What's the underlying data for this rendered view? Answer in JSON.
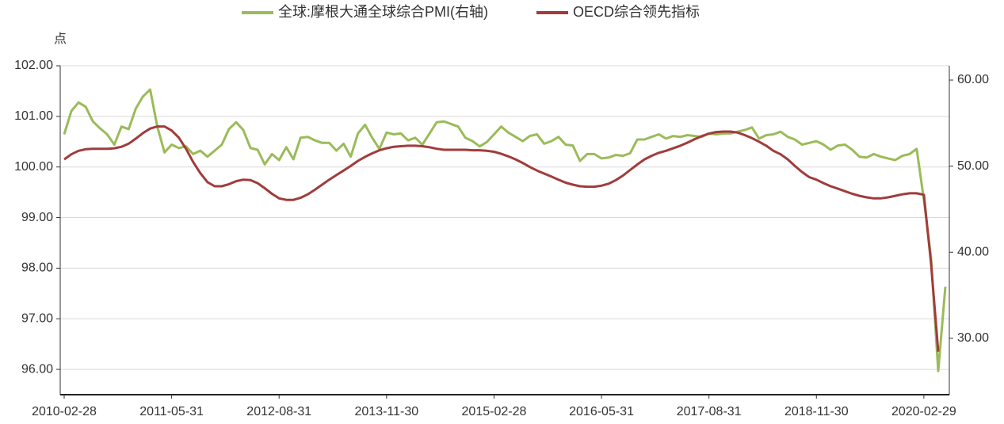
{
  "chart_data": {
    "type": "line",
    "y_unit_label": "点",
    "categories": [
      "2010-02-28",
      null,
      null,
      null,
      null,
      null,
      null,
      null,
      null,
      null,
      null,
      null,
      null,
      null,
      null,
      "2011-05-31",
      null,
      null,
      null,
      null,
      null,
      null,
      null,
      null,
      null,
      null,
      null,
      null,
      null,
      null,
      "2012-08-31",
      null,
      null,
      null,
      null,
      null,
      null,
      null,
      null,
      null,
      null,
      null,
      null,
      null,
      null,
      "2013-11-30",
      null,
      null,
      null,
      null,
      null,
      null,
      null,
      null,
      null,
      null,
      null,
      null,
      null,
      null,
      "2015-02-28",
      null,
      null,
      null,
      null,
      null,
      null,
      null,
      null,
      null,
      null,
      null,
      null,
      null,
      null,
      "2016-05-31",
      null,
      null,
      null,
      null,
      null,
      null,
      null,
      null,
      null,
      null,
      null,
      null,
      null,
      null,
      "2017-08-31",
      null,
      null,
      null,
      null,
      null,
      null,
      null,
      null,
      null,
      null,
      null,
      null,
      null,
      null,
      "2018-11-30",
      null,
      null,
      null,
      null,
      null,
      null,
      null,
      null,
      null,
      null,
      null,
      null,
      null,
      null,
      "2020-02-29",
      null,
      null,
      null
    ],
    "series": [
      {
        "name": "全球:摩根大通全球综合PMI(右轴)",
        "color": "#9bbb59",
        "axis": "y2",
        "values": [
          53.7,
          56.4,
          57.4,
          56.9,
          55.2,
          54.4,
          53.7,
          52.5,
          54.6,
          54.3,
          56.7,
          58.1,
          58.9,
          54.6,
          51.6,
          52.5,
          52.1,
          52.3,
          51.4,
          51.8,
          51.1,
          51.8,
          52.5,
          54.3,
          55.1,
          54.2,
          52.1,
          51.9,
          50.2,
          51.4,
          50.7,
          52.2,
          50.8,
          53.3,
          53.4,
          53.0,
          52.7,
          52.7,
          51.8,
          52.6,
          51.1,
          53.8,
          54.8,
          53.3,
          52.0,
          53.9,
          53.7,
          53.8,
          53.0,
          53.3,
          52.5,
          53.8,
          55.1,
          55.2,
          54.9,
          54.6,
          53.3,
          52.9,
          52.3,
          52.8,
          53.7,
          54.6,
          53.9,
          53.4,
          52.9,
          53.5,
          53.7,
          52.6,
          52.9,
          53.4,
          52.5,
          52.4,
          50.6,
          51.4,
          51.4,
          50.9,
          51.0,
          51.3,
          51.2,
          51.5,
          53.1,
          53.1,
          53.4,
          53.7,
          53.2,
          53.5,
          53.4,
          53.6,
          53.5,
          53.4,
          53.8,
          53.7,
          53.8,
          53.8,
          54.0,
          54.2,
          54.5,
          53.2,
          53.6,
          53.7,
          54.0,
          53.4,
          53.1,
          52.5,
          52.7,
          52.9,
          52.5,
          51.9,
          52.4,
          52.5,
          51.9,
          51.1,
          51.0,
          51.4,
          51.1,
          50.9,
          50.7,
          51.2,
          51.4,
          52.0,
          46.1,
          39.4,
          26.2,
          36.0
        ]
      },
      {
        "name": "OECD综合领先指标",
        "color": "#a03c3c",
        "values": [
          100.15,
          100.25,
          100.32,
          100.35,
          100.36,
          100.36,
          100.36,
          100.37,
          100.4,
          100.46,
          100.56,
          100.67,
          100.76,
          100.8,
          100.8,
          100.72,
          100.58,
          100.36,
          100.1,
          99.88,
          99.7,
          99.62,
          99.62,
          99.66,
          99.72,
          99.75,
          99.74,
          99.68,
          99.58,
          99.47,
          99.38,
          99.35,
          99.35,
          99.39,
          99.46,
          99.55,
          99.65,
          99.75,
          99.84,
          99.93,
          100.02,
          100.12,
          100.2,
          100.27,
          100.33,
          100.37,
          100.4,
          100.41,
          100.42,
          100.42,
          100.41,
          100.39,
          100.36,
          100.34,
          100.34,
          100.34,
          100.34,
          100.33,
          100.33,
          100.32,
          100.3,
          100.26,
          100.21,
          100.15,
          100.08,
          100.0,
          99.93,
          99.87,
          99.81,
          99.75,
          99.69,
          99.65,
          99.62,
          99.61,
          99.61,
          99.63,
          99.67,
          99.74,
          99.83,
          99.94,
          100.05,
          100.15,
          100.22,
          100.28,
          100.32,
          100.37,
          100.42,
          100.48,
          100.55,
          100.61,
          100.66,
          100.69,
          100.7,
          100.7,
          100.68,
          100.63,
          100.57,
          100.5,
          100.42,
          100.32,
          100.25,
          100.15,
          100.02,
          99.9,
          99.8,
          99.75,
          99.68,
          99.62,
          99.57,
          99.52,
          99.47,
          99.43,
          99.4,
          99.38,
          99.38,
          99.4,
          99.43,
          99.46,
          99.48,
          99.48,
          99.45,
          98.1,
          96.35,
          null
        ]
      }
    ],
    "ylim": [
      95.5,
      102
    ],
    "yticks": [
      {
        "value": 96,
        "label": "96.00"
      },
      {
        "value": 97,
        "label": "97.00"
      },
      {
        "value": 98,
        "label": "98.00"
      },
      {
        "value": 99,
        "label": "99.00"
      },
      {
        "value": 100,
        "label": "100.00"
      },
      {
        "value": 101,
        "label": "101.00"
      },
      {
        "value": 102,
        "label": "102.00"
      }
    ],
    "y2lim": [
      23.45,
      61.66
    ],
    "y2ticks": [
      {
        "value": 30,
        "label": "30.00"
      },
      {
        "value": 40,
        "label": "40.00"
      },
      {
        "value": 50,
        "label": "50.00"
      },
      {
        "value": 60,
        "label": "60.00"
      }
    ],
    "grid": true,
    "legend": "top"
  }
}
